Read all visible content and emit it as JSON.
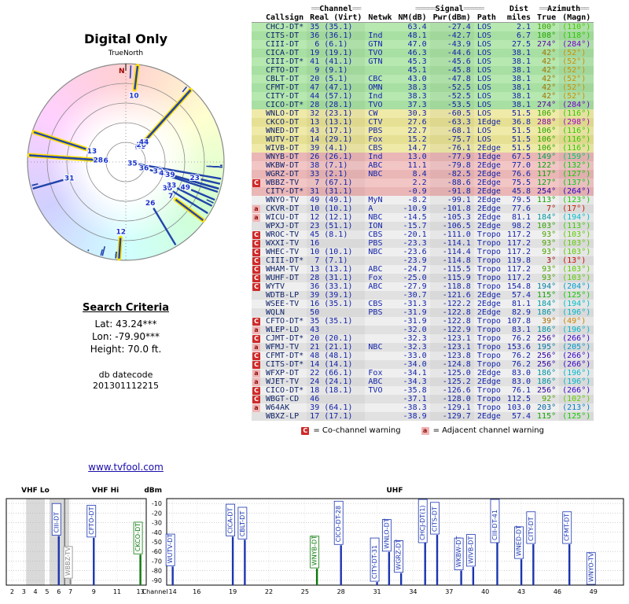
{
  "title": "Digital Only",
  "polar": {
    "true_north": "TrueNorth",
    "north": "N"
  },
  "search": {
    "heading": "Search Criteria",
    "lat": "Lat: 43.24***",
    "lon": "Lon: -79.90***",
    "height": "Height: 70.0 ft.",
    "datecode_label": "db datecode",
    "datecode": "201301112215"
  },
  "link": "www.tvfool.com",
  "legend": {
    "c": "C",
    "c_text": "= Co-channel warning",
    "a": "a",
    "a_text": "= Adjacent channel warning"
  },
  "table": {
    "groups": {
      "channel": "Channel",
      "signal": "Signal",
      "dist": "Dist",
      "azimuth": "Azimuth"
    },
    "deco": {
      "ch": "══",
      "sig": "═════",
      "az": "══"
    }
  },
  "chart_data": {
    "type": "table",
    "title": "Digital Only",
    "columns": [
      "Callsign",
      "Real (Virt)",
      "Netwk",
      "NM(dB)",
      "Pwr(dBm)",
      "Path",
      "miles",
      "True",
      "(Magn)"
    ],
    "stations": [
      {
        "cs": "CHCJ-DT*",
        "ch": "35 (35.1)",
        "nw": "",
        "nm": "63.4",
        "pw": "-27.4",
        "pa": "LOS",
        "mi": "2.1",
        "tr": "100°",
        "mg": "(110°)",
        "az": 100,
        "b": "g",
        "w": ""
      },
      {
        "cs": "CITS-DT",
        "ch": "36 (36.1)",
        "nw": "Ind",
        "nm": "48.1",
        "pw": "-42.7",
        "pa": "LOS",
        "mi": "6.7",
        "tr": "108°",
        "mg": "(118°)",
        "az": 108,
        "b": "g",
        "w": ""
      },
      {
        "cs": "CIII-DT",
        "ch": " 6 (6.1)",
        "nw": "GTN",
        "nm": "47.0",
        "pw": "-43.9",
        "pa": "LOS",
        "mi": "27.5",
        "tr": "274°",
        "mg": "(284°)",
        "az": 274,
        "b": "g",
        "w": ""
      },
      {
        "cs": "CICA-DT",
        "ch": "19 (19.1)",
        "nw": "TVO",
        "nm": "46.3",
        "pw": "-44.6",
        "pa": "LOS",
        "mi": "38.1",
        "tr": "42°",
        "mg": "(52°)",
        "az": 42,
        "b": "g",
        "w": ""
      },
      {
        "cs": "CIII-DT*",
        "ch": "41 (41.1)",
        "nw": "GTN",
        "nm": "45.3",
        "pw": "-45.6",
        "pa": "LOS",
        "mi": "38.1",
        "tr": "42°",
        "mg": "(52°)",
        "az": 42,
        "b": "g",
        "w": ""
      },
      {
        "cs": "CFTO-DT",
        "ch": " 9 (9.1)",
        "nw": "",
        "nm": "45.1",
        "pw": "-45.8",
        "pa": "LOS",
        "mi": "38.1",
        "tr": "42°",
        "mg": "(52°)",
        "az": 42,
        "b": "g",
        "w": ""
      },
      {
        "cs": "CBLT-DT",
        "ch": "20 (5.1)",
        "nw": "CBC",
        "nm": "43.0",
        "pw": "-47.8",
        "pa": "LOS",
        "mi": "38.1",
        "tr": "42°",
        "mg": "(52°)",
        "az": 42,
        "b": "g",
        "w": ""
      },
      {
        "cs": "CFMT-DT",
        "ch": "47 (47.1)",
        "nw": "OMN",
        "nm": "38.3",
        "pw": "-52.5",
        "pa": "LOS",
        "mi": "38.1",
        "tr": "42°",
        "mg": "(52°)",
        "az": 42,
        "b": "g",
        "w": ""
      },
      {
        "cs": "CITY-DT",
        "ch": "44 (57.1)",
        "nw": "Ind",
        "nm": "38.3",
        "pw": "-52.5",
        "pa": "LOS",
        "mi": "38.1",
        "tr": "42°",
        "mg": "(52°)",
        "az": 42,
        "b": "g",
        "w": ""
      },
      {
        "cs": "CICO-DT*",
        "ch": "28 (28.1)",
        "nw": "TVO",
        "nm": "37.3",
        "pw": "-53.5",
        "pa": "LOS",
        "mi": "38.1",
        "tr": "274°",
        "mg": "(284°)",
        "az": 274,
        "b": "g",
        "w": ""
      },
      {
        "cs": "WNLO-DT",
        "ch": "32 (23.1)",
        "nw": "CW",
        "nm": "30.3",
        "pw": "-60.5",
        "pa": "LOS",
        "mi": "51.5",
        "tr": "106°",
        "mg": "(116°)",
        "az": 106,
        "b": "y",
        "w": ""
      },
      {
        "cs": "CKCO-DT",
        "ch": "13 (13.1)",
        "nw": "CTV",
        "nm": "27.6",
        "pw": "-63.3",
        "pa": "1Edge",
        "mi": "36.8",
        "tr": "288°",
        "mg": "(298°)",
        "az": 288,
        "b": "y",
        "w": ""
      },
      {
        "cs": "WNED-DT",
        "ch": "43 (17.1)",
        "nw": "PBS",
        "nm": "22.7",
        "pw": "-68.1",
        "pa": "LOS",
        "mi": "51.5",
        "tr": "106°",
        "mg": "(116°)",
        "az": 106,
        "b": "y",
        "w": ""
      },
      {
        "cs": "WUTV-DT",
        "ch": "14 (29.1)",
        "nw": "Fox",
        "nm": "15.2",
        "pw": "-75.7",
        "pa": "LOS",
        "mi": "51.5",
        "tr": "106°",
        "mg": "(116°)",
        "az": 106,
        "b": "y",
        "w": ""
      },
      {
        "cs": "WIVB-DT",
        "ch": "39 (4.1)",
        "nw": "CBS",
        "nm": "14.7",
        "pw": "-76.1",
        "pa": "2Edge",
        "mi": "51.5",
        "tr": "106°",
        "mg": "(116°)",
        "az": 106,
        "b": "y",
        "w": ""
      },
      {
        "cs": "WNYB-DT",
        "ch": "26 (26.1)",
        "nw": "Ind",
        "nm": "13.0",
        "pw": "-77.9",
        "pa": "1Edge",
        "mi": "67.5",
        "tr": "149°",
        "mg": "(159°)",
        "az": 149,
        "b": "p",
        "w": ""
      },
      {
        "cs": "WKBW-DT",
        "ch": "38 (7.1)",
        "nw": "ABC",
        "nm": "11.1",
        "pw": "-79.8",
        "pa": "2Edge",
        "mi": "77.0",
        "tr": "122°",
        "mg": "(132°)",
        "az": 122,
        "b": "p",
        "w": ""
      },
      {
        "cs": "WGRZ-DT",
        "ch": "33 (2.1)",
        "nw": "NBC",
        "nm": "8.4",
        "pw": "-82.5",
        "pa": "2Edge",
        "mi": "76.6",
        "tr": "117°",
        "mg": "(127°)",
        "az": 117,
        "b": "p",
        "w": ""
      },
      {
        "cs": "WBBZ-TV",
        "ch": " 7 (67.1)",
        "nw": "",
        "nm": "2.2",
        "pw": "-88.6",
        "pa": "2Edge",
        "mi": "75.5",
        "tr": "127°",
        "mg": "(137°)",
        "az": 127,
        "b": "p",
        "w": "C"
      },
      {
        "cs": "CITY-DT*",
        "ch": "31 (31.1)",
        "nw": "",
        "nm": "-0.9",
        "pw": "-91.8",
        "pa": "2Edge",
        "mi": "45.8",
        "tr": "254°",
        "mg": "(264°)",
        "az": 254,
        "b": "p",
        "w": ""
      },
      {
        "cs": "WNYO-TV",
        "ch": "49 (49.1)",
        "nw": "MyN",
        "nm": "-8.2",
        "pw": "-99.1",
        "pa": "2Edge",
        "mi": "79.5",
        "tr": "113°",
        "mg": "(123°)",
        "az": 113,
        "b": "w",
        "w": ""
      },
      {
        "cs": "CKVR-DT",
        "ch": "10 (10.1)",
        "nw": "A",
        "nm": "-10.9",
        "pw": "-101.8",
        "pa": "2Edge",
        "mi": "77.6",
        "tr": "7°",
        "mg": "(17°)",
        "az": 7,
        "b": "w",
        "w": "a"
      },
      {
        "cs": "WICU-DT",
        "ch": "12 (12.1)",
        "nw": "NBC",
        "nm": "-14.5",
        "pw": "-105.3",
        "pa": "2Edge",
        "mi": "81.1",
        "tr": "184°",
        "mg": "(194°)",
        "az": 184,
        "b": "w",
        "w": "a"
      },
      {
        "cs": "WPXJ-DT",
        "ch": "23 (51.1)",
        "nw": "ION",
        "nm": "-15.7",
        "pw": "-106.5",
        "pa": "2Edge",
        "mi": "98.2",
        "tr": "103°",
        "mg": "(113°)",
        "az": 103,
        "b": "w",
        "w": ""
      },
      {
        "cs": "WROC-TV",
        "ch": "45 (8.1)",
        "nw": "CBS",
        "nm": "-20.1",
        "pw": "-111.0",
        "pa": "Tropo",
        "mi": "117.2",
        "tr": "93°",
        "mg": "(103°)",
        "az": 93,
        "b": "w",
        "w": "C"
      },
      {
        "cs": "WXXI-TV",
        "ch": "16",
        "nw": "PBS",
        "nm": "-23.3",
        "pw": "-114.1",
        "pa": "Tropo",
        "mi": "117.2",
        "tr": "93°",
        "mg": "(103°)",
        "az": 93,
        "b": "w",
        "w": "C"
      },
      {
        "cs": "WHEC-TV",
        "ch": "10 (10.1)",
        "nw": "NBC",
        "nm": "-23.6",
        "pw": "-114.4",
        "pa": "Tropo",
        "mi": "117.2",
        "tr": "93°",
        "mg": "(103°)",
        "az": 93,
        "b": "w",
        "w": "C"
      },
      {
        "cs": "CIII-DT*",
        "ch": " 7 (7.1)",
        "nw": "",
        "nm": "-23.9",
        "pw": "-114.8",
        "pa": "Tropo",
        "mi": "119.8",
        "tr": "3°",
        "mg": "(13°)",
        "az": 3,
        "b": "w",
        "w": "C"
      },
      {
        "cs": "WHAM-TV",
        "ch": "13 (13.1)",
        "nw": "ABC",
        "nm": "-24.7",
        "pw": "-115.5",
        "pa": "Tropo",
        "mi": "117.2",
        "tr": "93°",
        "mg": "(103°)",
        "az": 93,
        "b": "w",
        "w": "C"
      },
      {
        "cs": "WUHF-DT",
        "ch": "28 (31.1)",
        "nw": "Fox",
        "nm": "-25.0",
        "pw": "-115.9",
        "pa": "Tropo",
        "mi": "117.2",
        "tr": "93°",
        "mg": "(103°)",
        "az": 93,
        "b": "w",
        "w": "C"
      },
      {
        "cs": "WYTV",
        "ch": "36 (33.1)",
        "nw": "ABC",
        "nm": "-27.9",
        "pw": "-118.8",
        "pa": "Tropo",
        "mi": "154.8",
        "tr": "194°",
        "mg": "(204°)",
        "az": 194,
        "b": "w",
        "w": "C"
      },
      {
        "cs": "WDTB-LP",
        "ch": "39 (39.1)",
        "nw": "",
        "nm": "-30.7",
        "pw": "-121.6",
        "pa": "2Edge",
        "mi": "57.4",
        "tr": "115°",
        "mg": "(125°)",
        "az": 115,
        "b": "w",
        "w": ""
      },
      {
        "cs": "WSEE-TV",
        "ch": "16 (35.1)",
        "nw": "CBS",
        "nm": "-31.3",
        "pw": "-122.2",
        "pa": "2Edge",
        "mi": "81.1",
        "tr": "184°",
        "mg": "(194°)",
        "az": 184,
        "b": "w",
        "w": ""
      },
      {
        "cs": "WQLN",
        "ch": "50",
        "nw": "PBS",
        "nm": "-31.9",
        "pw": "-122.8",
        "pa": "2Edge",
        "mi": "82.9",
        "tr": "186°",
        "mg": "(196°)",
        "az": 186,
        "b": "w",
        "w": ""
      },
      {
        "cs": "CFTO-DT*",
        "ch": "35 (35.1)",
        "nw": "",
        "nm": "-31.9",
        "pw": "-122.8",
        "pa": "Tropo",
        "mi": "107.8",
        "tr": "39°",
        "mg": "(49°)",
        "az": 39,
        "b": "w",
        "w": "C"
      },
      {
        "cs": "WLEP-LD",
        "ch": "43",
        "nw": "",
        "nm": "-32.0",
        "pw": "-122.9",
        "pa": "Tropo",
        "mi": "83.1",
        "tr": "186°",
        "mg": "(196°)",
        "az": 186,
        "b": "w",
        "w": "a"
      },
      {
        "cs": "CJMT-DT*",
        "ch": "20 (20.1)",
        "nw": "",
        "nm": "-32.3",
        "pw": "-123.1",
        "pa": "Tropo",
        "mi": "76.2",
        "tr": "256°",
        "mg": "(266°)",
        "az": 256,
        "b": "w",
        "w": "C"
      },
      {
        "cs": "WFMJ-TV",
        "ch": "21 (21.1)",
        "nw": "NBC",
        "nm": "-32.3",
        "pw": "-123.1",
        "pa": "Tropo",
        "mi": "153.6",
        "tr": "195°",
        "mg": "(205°)",
        "az": 195,
        "b": "w",
        "w": "a"
      },
      {
        "cs": "CFMT-DT*",
        "ch": "48 (48.1)",
        "nw": "",
        "nm": "-33.0",
        "pw": "-123.8",
        "pa": "Tropo",
        "mi": "76.2",
        "tr": "256°",
        "mg": "(266°)",
        "az": 256,
        "b": "w",
        "w": "C"
      },
      {
        "cs": "CITS-DT*",
        "ch": "14 (14.1)",
        "nw": "",
        "nm": "-34.0",
        "pw": "-124.8",
        "pa": "Tropo",
        "mi": "76.2",
        "tr": "256°",
        "mg": "(266°)",
        "az": 256,
        "b": "w",
        "w": "C"
      },
      {
        "cs": "WFXP-DT",
        "ch": "22 (66.1)",
        "nw": "Fox",
        "nm": "-34.1",
        "pw": "-125.0",
        "pa": "2Edge",
        "mi": "83.0",
        "tr": "186°",
        "mg": "(196°)",
        "az": 186,
        "b": "w",
        "w": "a"
      },
      {
        "cs": "WJET-TV",
        "ch": "24 (24.1)",
        "nw": "ABC",
        "nm": "-34.3",
        "pw": "-125.2",
        "pa": "2Edge",
        "mi": "83.0",
        "tr": "186°",
        "mg": "(196°)",
        "az": 186,
        "b": "w",
        "w": "a"
      },
      {
        "cs": "CICO-DT*",
        "ch": "18 (18.1)",
        "nw": "TVO",
        "nm": "-35.8",
        "pw": "-126.6",
        "pa": "Tropo",
        "mi": "76.1",
        "tr": "256°",
        "mg": "(266°)",
        "az": 256,
        "b": "w",
        "w": "C"
      },
      {
        "cs": "WBGT-CD",
        "ch": "46",
        "nw": "",
        "nm": "-37.1",
        "pw": "-128.0",
        "pa": "Tropo",
        "mi": "112.5",
        "tr": "92°",
        "mg": "(102°)",
        "az": 92,
        "b": "w",
        "w": "C"
      },
      {
        "cs": "W64AK",
        "ch": "39 (64.1)",
        "nw": "",
        "nm": "-38.3",
        "pw": "-129.1",
        "pa": "Tropo",
        "mi": "103.0",
        "tr": "203°",
        "mg": "(213°)",
        "az": 203,
        "b": "w",
        "w": "a"
      },
      {
        "cs": "WBXZ-LP",
        "ch": "17 (17.1)",
        "nw": "",
        "nm": "-38.9",
        "pw": "-129.7",
        "pa": "2Edge",
        "mi": "57.4",
        "tr": "115°",
        "mg": "(125°)",
        "az": 115,
        "b": "w",
        "w": ""
      }
    ],
    "polar_plot": {
      "type": "scatter",
      "angle_field": "azimuth true (deg)",
      "radius_field": "signal NM(dB), stronger toward center",
      "point_labels": "real channel number",
      "highlight": "VHF stations (real channel <= 13) outlined yellow"
    },
    "bar_chart": {
      "type": "bar",
      "ylabel": "dBm",
      "xlabel": "Channel",
      "ylim": [
        -95,
        -5
      ],
      "yticks": [
        -10,
        -20,
        -30,
        -40,
        -50,
        -60,
        -70,
        -80,
        -90
      ],
      "panels": [
        {
          "label_lo": "VHF Lo",
          "label_hi": "VHF Hi",
          "range": [
            1.5,
            13.5
          ],
          "ticks": [
            2,
            3,
            4,
            5,
            6,
            7,
            9,
            11,
            13
          ],
          "divider": 6.5,
          "bands": [
            [
              3.2,
              4.8
            ],
            [
              5.2,
              6.9
            ]
          ]
        },
        {
          "label": "UHF",
          "range": [
            13.5,
            51.5
          ],
          "ticks": [
            14,
            16,
            19,
            22,
            25,
            28,
            31,
            34,
            37,
            40,
            43,
            46,
            49
          ]
        }
      ],
      "bars": [
        {
          "callsign": "CIII-DT",
          "ch": 6,
          "dbm": -43.9,
          "color": "#1a35b0",
          "panel": 0
        },
        {
          "callsign": "WBBZ-TV",
          "ch": 7,
          "dbm": -88.6,
          "color": "#8a8a8a",
          "panel": 0
        },
        {
          "callsign": "CFTO-DT",
          "ch": 9,
          "dbm": -45.8,
          "color": "#1a35b0",
          "panel": 0
        },
        {
          "callsign": "CKCO-DT",
          "ch": 13,
          "dbm": -63.3,
          "color": "#0a7a0a",
          "panel": 0
        },
        {
          "callsign": "WUTV-DT",
          "ch": 14,
          "dbm": -75.7,
          "color": "#1a35b0",
          "panel": 1
        },
        {
          "callsign": "CICA-DT",
          "ch": 19,
          "dbm": -44.6,
          "color": "#1a35b0",
          "panel": 1
        },
        {
          "callsign": "CBLT-DT",
          "ch": 20,
          "dbm": -47.8,
          "color": "#1a35b0",
          "panel": 1
        },
        {
          "callsign": "WNYB-DT",
          "ch": 26,
          "dbm": -77.9,
          "color": "#0a7a0a",
          "panel": 1
        },
        {
          "callsign": "CICO-DT-28",
          "ch": 28,
          "dbm": -53.5,
          "color": "#1a35b0",
          "panel": 1
        },
        {
          "callsign": "CITY-DT-31",
          "ch": 31,
          "dbm": -91.8,
          "color": "#1a35b0",
          "panel": 1
        },
        {
          "callsign": "WNLO-DT",
          "ch": 32,
          "dbm": -60.5,
          "color": "#1a35b0",
          "panel": 1
        },
        {
          "callsign": "WGRZ-DT",
          "ch": 33,
          "dbm": -82.5,
          "color": "#1a35b0",
          "panel": 1
        },
        {
          "callsign": "CHCJ-DT(1)",
          "ch": 35,
          "dbm": -27.4,
          "color": "#1a35b0",
          "panel": 1
        },
        {
          "callsign": "CITS-DT",
          "ch": 36,
          "dbm": -42.7,
          "color": "#1a35b0",
          "panel": 1
        },
        {
          "callsign": "WKBW-DT",
          "ch": 38,
          "dbm": -79.8,
          "color": "#1a35b0",
          "panel": 1
        },
        {
          "callsign": "WIVB-DT",
          "ch": 39,
          "dbm": -76.1,
          "color": "#1a35b0",
          "panel": 1
        },
        {
          "callsign": "CIII-DT-41",
          "ch": 41,
          "dbm": -45.6,
          "color": "#1a35b0",
          "panel": 1
        },
        {
          "callsign": "WNED-DT",
          "ch": 43,
          "dbm": -68.1,
          "color": "#1a35b0",
          "panel": 1
        },
        {
          "callsign": "CITY-DT",
          "ch": 44,
          "dbm": -52.5,
          "color": "#1a35b0",
          "panel": 1
        },
        {
          "callsign": "CFMT-DT",
          "ch": 47,
          "dbm": -52.5,
          "color": "#1a35b0",
          "panel": 1
        },
        {
          "callsign": "WNYO-TV",
          "ch": 49,
          "dbm": -99.1,
          "color": "#1a35b0",
          "panel": 1
        }
      ]
    }
  }
}
